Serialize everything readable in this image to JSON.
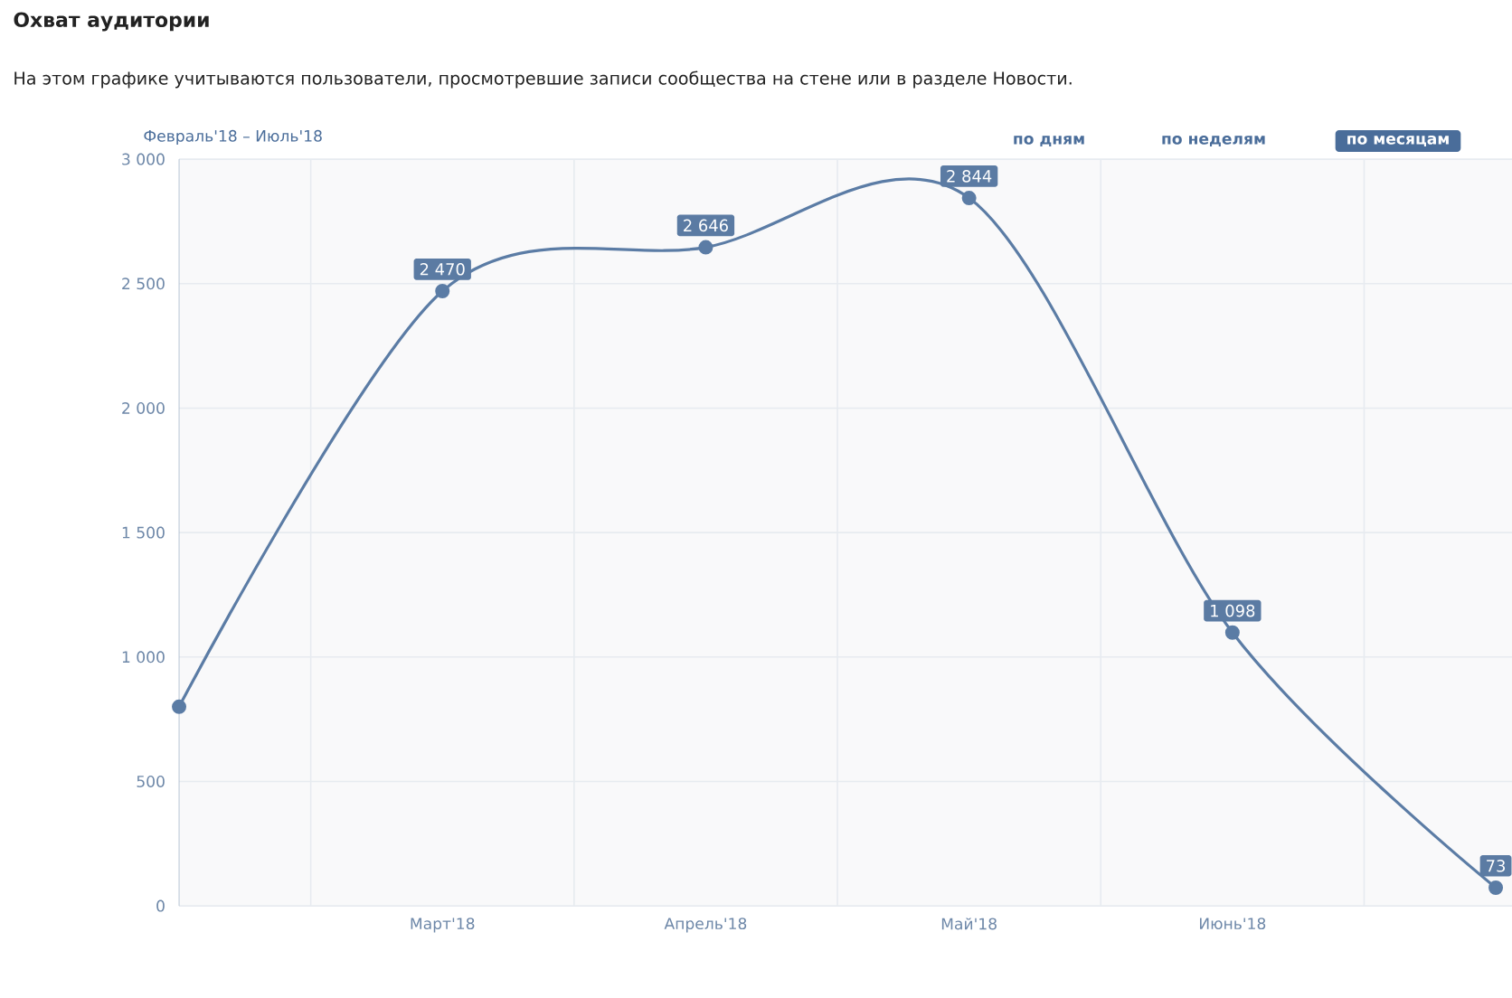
{
  "chart_data": {
    "type": "line",
    "title": "Охват аудитории",
    "subtitle": "На этом графике учитываются пользователи, просмотревшие записи сообщества на стене или в разделе Новости.",
    "annotations": [
      "Февраль'18 – Июль'18",
      "по дням",
      "по неделям",
      "по месяцам"
    ],
    "categories": [
      null,
      "Март'18",
      "Апрель'18",
      "Май'18",
      "Июнь'18",
      null
    ],
    "values": [
      800,
      2470,
      2646,
      2844,
      1098,
      73
    ],
    "value_labels": [
      null,
      "2 470",
      "2 646",
      "2 844",
      "1 098",
      "73"
    ],
    "color": "#5b7ca5",
    "ylim": [
      0,
      3000
    ],
    "yticks": [
      {
        "value": 0,
        "label": "0"
      },
      {
        "value": 500,
        "label": "500"
      },
      {
        "value": 1000,
        "label": "1 000"
      },
      {
        "value": 1500,
        "label": "1 500"
      },
      {
        "value": 2000,
        "label": "2 000"
      },
      {
        "value": 2500,
        "label": "2 500"
      },
      {
        "value": 3000,
        "label": "3 000"
      }
    ],
    "grid": true,
    "marker": "circle"
  }
}
